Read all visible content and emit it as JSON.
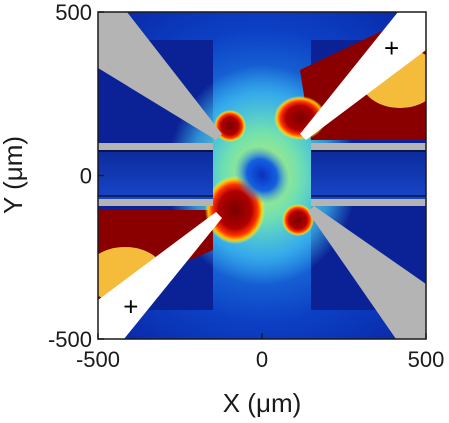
{
  "chart_data": {
    "type": "heatmap",
    "xlabel": "X (μm)",
    "ylabel": "Y (μm)",
    "xlim": [
      -500,
      500
    ],
    "ylim": [
      -500,
      500
    ],
    "x_ticks": [
      -500,
      0,
      500
    ],
    "y_ticks": [
      -500,
      0,
      500
    ],
    "x_tick_labels": [
      "-500",
      "0",
      "500"
    ],
    "y_tick_labels": [
      "-500",
      "0",
      "500"
    ],
    "colormap": "jet",
    "grid": false,
    "annotations": [
      {
        "text": "+",
        "x": 395,
        "y": 390
      },
      {
        "text": "+",
        "x": -400,
        "y": -400
      }
    ],
    "colors": {
      "electrode": "#b4b4b4",
      "electrode_highlight": "#ffffff",
      "background": "#ffffff"
    }
  }
}
